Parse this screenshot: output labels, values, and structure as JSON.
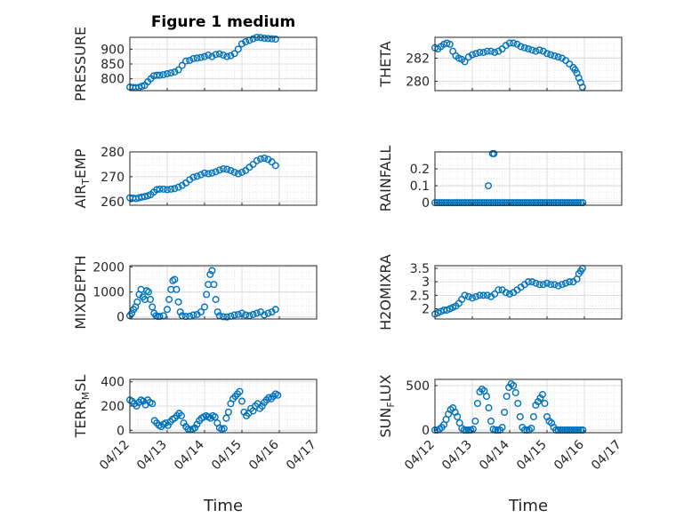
{
  "figure": {
    "title": "Figure 1 medium",
    "xlabel": "Time"
  },
  "time_ticks": [
    "04/12",
    "04/13",
    "04/14",
    "04/15",
    "04/16",
    "04/17"
  ],
  "colors": {
    "marker": "#0072BD",
    "grid": "#dcdcdc",
    "axis": "#262626"
  },
  "chart_data": [
    {
      "type": "scatter",
      "name": "PRESSURE",
      "ylabel": [
        "PRESSURE"
      ],
      "ylim": [
        760,
        940
      ],
      "yticks": [
        800,
        850,
        900
      ],
      "xlim": [
        0,
        5
      ],
      "grid": true,
      "x": [
        0,
        0.08,
        0.16,
        0.24,
        0.32,
        0.4,
        0.48,
        0.56,
        0.64,
        0.72,
        0.8,
        0.9,
        1.0,
        1.1,
        1.2,
        1.3,
        1.4,
        1.5,
        1.6,
        1.7,
        1.8,
        1.9,
        2.0,
        2.1,
        2.2,
        2.3,
        2.4,
        2.5,
        2.6,
        2.7,
        2.8,
        2.9,
        3.0,
        3.1,
        3.2,
        3.3,
        3.4,
        3.5,
        3.6,
        3.7,
        3.8,
        3.9
      ],
      "y": [
        772,
        771,
        770,
        771,
        775,
        778,
        790,
        800,
        810,
        812,
        812,
        814,
        817,
        820,
        823,
        830,
        845,
        860,
        862,
        868,
        870,
        872,
        875,
        880,
        875,
        882,
        884,
        880,
        875,
        878,
        885,
        900,
        918,
        925,
        930,
        935,
        940,
        939,
        937,
        936,
        935,
        934
      ]
    },
    {
      "type": "scatter",
      "name": "THETA",
      "ylabel": [
        "THETA"
      ],
      "ylim": [
        279.2,
        283.8
      ],
      "yticks": [
        280,
        282
      ],
      "xlim": [
        0,
        5
      ],
      "grid": true,
      "x": [
        0,
        0.08,
        0.16,
        0.24,
        0.32,
        0.4,
        0.48,
        0.56,
        0.64,
        0.72,
        0.8,
        0.9,
        1.0,
        1.1,
        1.2,
        1.3,
        1.4,
        1.5,
        1.6,
        1.7,
        1.8,
        1.9,
        2.0,
        2.1,
        2.2,
        2.3,
        2.4,
        2.5,
        2.6,
        2.7,
        2.8,
        2.9,
        3.0,
        3.1,
        3.2,
        3.3,
        3.4,
        3.5,
        3.6,
        3.7,
        3.75,
        3.8,
        3.85,
        3.9,
        3.95
      ],
      "y": [
        282.9,
        282.8,
        283.0,
        283.2,
        283.3,
        283.2,
        282.6,
        282.2,
        282.0,
        281.9,
        281.7,
        282.1,
        282.3,
        282.4,
        282.5,
        282.5,
        282.6,
        282.6,
        282.5,
        282.6,
        282.8,
        283.1,
        283.3,
        283.3,
        283.2,
        283.0,
        282.9,
        282.8,
        282.7,
        282.6,
        282.7,
        282.6,
        282.4,
        282.3,
        282.2,
        282.1,
        282.0,
        281.8,
        281.5,
        281.2,
        281.0,
        280.7,
        280.3,
        279.9,
        279.5
      ]
    },
    {
      "type": "scatter",
      "name": "AIR_TEMP",
      "ylabel": [
        "AIR",
        "T",
        "EMP"
      ],
      "ylim": [
        258.5,
        280
      ],
      "yticks": [
        260,
        270,
        280
      ],
      "xlim": [
        0,
        5
      ],
      "grid": true,
      "x": [
        0,
        0.08,
        0.16,
        0.24,
        0.32,
        0.4,
        0.48,
        0.56,
        0.64,
        0.72,
        0.8,
        0.9,
        1.0,
        1.1,
        1.2,
        1.3,
        1.4,
        1.5,
        1.6,
        1.7,
        1.8,
        1.9,
        2.0,
        2.1,
        2.2,
        2.3,
        2.4,
        2.5,
        2.6,
        2.7,
        2.8,
        2.9,
        3.0,
        3.1,
        3.2,
        3.3,
        3.4,
        3.5,
        3.6,
        3.7,
        3.8,
        3.9
      ],
      "y": [
        261.5,
        261.4,
        261.2,
        261.5,
        261.8,
        262.0,
        262.3,
        262.8,
        263.8,
        264.8,
        265.0,
        265.0,
        264.8,
        265.0,
        265.2,
        265.8,
        266.5,
        267.5,
        268.8,
        269.8,
        270.2,
        270.8,
        271.5,
        271.2,
        271.5,
        272.0,
        272.7,
        273.2,
        273.0,
        272.5,
        271.8,
        271.2,
        271.8,
        272.5,
        273.8,
        275.0,
        276.5,
        277.2,
        277.5,
        277.0,
        276.0,
        274.5
      ]
    },
    {
      "type": "scatter",
      "name": "RAINFALL",
      "ylabel": [
        "RAINFALL"
      ],
      "ylim": [
        -0.015,
        0.3
      ],
      "yticks": [
        0,
        0.1,
        0.2
      ],
      "xlim": [
        0,
        5
      ],
      "grid": true,
      "x": [
        0,
        0.06,
        0.12,
        0.18,
        0.24,
        0.3,
        0.36,
        0.42,
        0.48,
        0.54,
        0.6,
        0.66,
        0.72,
        0.78,
        0.84,
        0.9,
        0.96,
        1.02,
        1.08,
        1.14,
        1.2,
        1.26,
        1.32,
        1.38,
        1.44,
        1.5,
        1.56,
        1.62,
        1.68,
        1.74,
        1.8,
        1.86,
        1.92,
        1.98,
        2.04,
        2.1,
        2.16,
        2.22,
        2.28,
        2.34,
        2.4,
        2.46,
        2.52,
        2.58,
        2.64,
        2.7,
        2.76,
        2.82,
        2.88,
        2.94,
        3.0,
        3.06,
        3.12,
        3.18,
        3.24,
        3.3,
        3.36,
        3.42,
        3.48,
        3.54,
        3.6,
        3.66,
        3.72,
        3.78,
        3.84,
        3.9,
        3.96,
        1.43,
        1.54,
        1.58
      ],
      "y": [
        0,
        0,
        0,
        0,
        0,
        0,
        0,
        0,
        0,
        0,
        0,
        0,
        0,
        0,
        0,
        0,
        0,
        0,
        0,
        0,
        0,
        0,
        0,
        0,
        0,
        0,
        0,
        0,
        0,
        0,
        0,
        0,
        0,
        0,
        0,
        0,
        0,
        0,
        0,
        0,
        0,
        0,
        0,
        0,
        0,
        0,
        0,
        0,
        0,
        0,
        0,
        0,
        0,
        0,
        0,
        0,
        0,
        0,
        0,
        0,
        0,
        0,
        0,
        0,
        0,
        0,
        0,
        0.1,
        0.29,
        0.29
      ]
    },
    {
      "type": "scatter",
      "name": "MIXDEPTH",
      "ylabel": [
        "MIXDEPTH"
      ],
      "ylim": [
        -80,
        2050
      ],
      "yticks": [
        0,
        1000,
        2000
      ],
      "xlim": [
        0,
        5
      ],
      "grid": true,
      "x": [
        0,
        0.05,
        0.1,
        0.15,
        0.2,
        0.25,
        0.3,
        0.35,
        0.4,
        0.45,
        0.5,
        0.55,
        0.6,
        0.65,
        0.7,
        0.75,
        0.8,
        0.9,
        1.0,
        1.05,
        1.1,
        1.15,
        1.2,
        1.25,
        1.3,
        1.35,
        1.4,
        1.5,
        1.6,
        1.7,
        1.8,
        1.9,
        2.0,
        2.05,
        2.1,
        2.15,
        2.2,
        2.25,
        2.3,
        2.35,
        2.4,
        2.5,
        2.6,
        2.7,
        2.8,
        2.9,
        3.0,
        3.1,
        3.2,
        3.3,
        3.4,
        3.5,
        3.6,
        3.7,
        3.8,
        3.9
      ],
      "y": [
        50,
        150,
        300,
        400,
        600,
        900,
        1100,
        800,
        700,
        1050,
        1000,
        700,
        400,
        150,
        50,
        20,
        20,
        50,
        300,
        700,
        1100,
        1450,
        1500,
        1100,
        600,
        200,
        50,
        20,
        30,
        80,
        100,
        200,
        400,
        900,
        1300,
        1700,
        1850,
        1300,
        700,
        200,
        50,
        10,
        0,
        30,
        80,
        100,
        150,
        80,
        50,
        100,
        150,
        200,
        80,
        150,
        200,
        300
      ]
    },
    {
      "type": "scatter",
      "name": "H2OMIXRA",
      "ylabel": [
        "H2OMIXRA"
      ],
      "ylim": [
        1.62,
        3.6
      ],
      "yticks": [
        2,
        2.5,
        3,
        3.5
      ],
      "xlim": [
        0,
        5
      ],
      "grid": true,
      "x": [
        0,
        0.08,
        0.16,
        0.24,
        0.32,
        0.4,
        0.48,
        0.56,
        0.64,
        0.72,
        0.8,
        0.9,
        1.0,
        1.1,
        1.2,
        1.3,
        1.4,
        1.5,
        1.6,
        1.7,
        1.8,
        1.9,
        2.0,
        2.1,
        2.2,
        2.3,
        2.4,
        2.5,
        2.6,
        2.7,
        2.8,
        2.9,
        3.0,
        3.1,
        3.2,
        3.3,
        3.4,
        3.5,
        3.6,
        3.7,
        3.8,
        3.85,
        3.9,
        3.95
      ],
      "y": [
        1.8,
        1.85,
        1.9,
        1.95,
        1.95,
        2.0,
        2.05,
        2.1,
        2.2,
        2.35,
        2.5,
        2.45,
        2.4,
        2.45,
        2.5,
        2.5,
        2.5,
        2.45,
        2.55,
        2.7,
        2.7,
        2.6,
        2.55,
        2.6,
        2.7,
        2.8,
        2.9,
        3.0,
        3.0,
        2.95,
        2.9,
        2.9,
        2.95,
        2.9,
        2.9,
        2.85,
        2.9,
        2.95,
        3.0,
        3.0,
        3.1,
        3.3,
        3.4,
        3.5
      ]
    },
    {
      "type": "scatter",
      "name": "TERR_MSL",
      "ylabel": [
        "TERR",
        "M",
        "SL"
      ],
      "ylim": [
        -20,
        420
      ],
      "yticks": [
        0,
        200,
        400
      ],
      "xlim": [
        0,
        5
      ],
      "grid": true,
      "x": [
        0,
        0.06,
        0.12,
        0.18,
        0.24,
        0.3,
        0.36,
        0.42,
        0.48,
        0.54,
        0.6,
        0.66,
        0.72,
        0.78,
        0.84,
        0.9,
        0.96,
        1.02,
        1.08,
        1.14,
        1.2,
        1.26,
        1.32,
        1.38,
        1.44,
        1.5,
        1.56,
        1.62,
        1.68,
        1.74,
        1.8,
        1.86,
        1.92,
        1.98,
        2.04,
        2.1,
        2.16,
        2.22,
        2.28,
        2.34,
        2.4,
        2.46,
        2.52,
        2.58,
        2.64,
        2.7,
        2.76,
        2.82,
        2.88,
        2.94,
        3.0,
        3.06,
        3.12,
        3.18,
        3.24,
        3.3,
        3.36,
        3.42,
        3.48,
        3.54,
        3.6,
        3.66,
        3.72,
        3.78,
        3.84,
        3.9,
        3.96
      ],
      "y": [
        250,
        240,
        220,
        200,
        230,
        250,
        240,
        210,
        250,
        230,
        220,
        80,
        60,
        40,
        30,
        50,
        60,
        40,
        70,
        90,
        100,
        120,
        140,
        120,
        60,
        30,
        10,
        5,
        10,
        20,
        50,
        80,
        100,
        110,
        120,
        110,
        100,
        120,
        110,
        60,
        20,
        10,
        15,
        100,
        150,
        220,
        260,
        280,
        300,
        320,
        240,
        150,
        120,
        140,
        180,
        160,
        200,
        220,
        180,
        200,
        230,
        250,
        270,
        260,
        280,
        300,
        290
      ]
    },
    {
      "type": "scatter",
      "name": "SUN_FLUX",
      "ylabel": [
        "SUN",
        "F",
        "LUX"
      ],
      "ylim": [
        -30,
        570
      ],
      "yticks": [
        0,
        500
      ],
      "xlim": [
        0,
        5
      ],
      "grid": true,
      "x": [
        0,
        0.06,
        0.12,
        0.18,
        0.24,
        0.3,
        0.36,
        0.42,
        0.48,
        0.54,
        0.6,
        0.66,
        0.72,
        0.78,
        0.84,
        0.9,
        0.96,
        1.02,
        1.08,
        1.14,
        1.2,
        1.26,
        1.32,
        1.38,
        1.44,
        1.5,
        1.56,
        1.62,
        1.68,
        1.74,
        1.8,
        1.86,
        1.92,
        1.98,
        2.04,
        2.1,
        2.16,
        2.22,
        2.28,
        2.34,
        2.4,
        2.46,
        2.52,
        2.58,
        2.64,
        2.7,
        2.76,
        2.82,
        2.88,
        2.94,
        3.0,
        3.06,
        3.12,
        3.18,
        3.24,
        3.3,
        3.36,
        3.42,
        3.48,
        3.54,
        3.6,
        3.66,
        3.72,
        3.78,
        3.84,
        3.9,
        3.96
      ],
      "y": [
        0,
        0,
        10,
        30,
        60,
        120,
        180,
        230,
        250,
        200,
        150,
        80,
        20,
        0,
        0,
        0,
        0,
        10,
        100,
        300,
        430,
        460,
        440,
        380,
        250,
        100,
        10,
        0,
        0,
        0,
        30,
        200,
        380,
        480,
        520,
        500,
        420,
        300,
        150,
        30,
        0,
        0,
        0,
        20,
        150,
        280,
        320,
        360,
        400,
        300,
        150,
        100,
        80,
        30,
        0,
        0,
        0,
        0,
        0,
        0,
        0,
        0,
        0,
        0,
        0,
        0,
        0
      ]
    }
  ]
}
